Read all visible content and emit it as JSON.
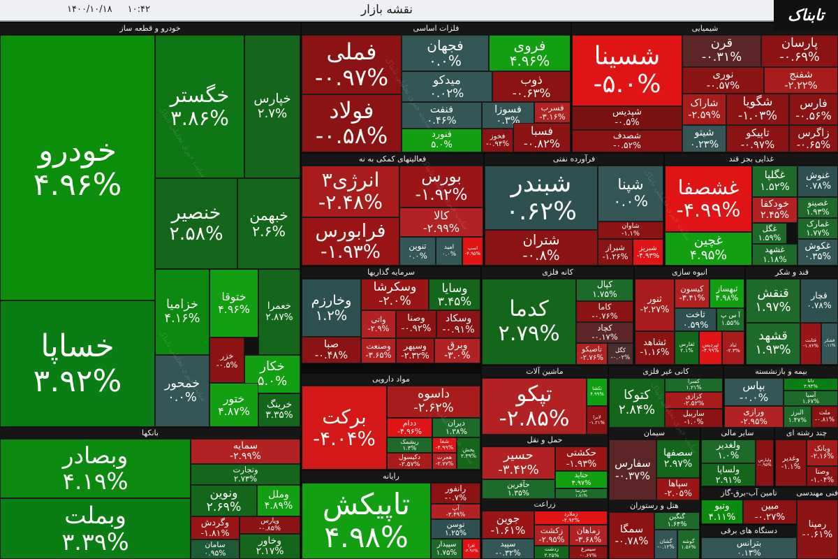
{
  "header": {
    "title": "نقشه بازار",
    "date": "۱۴۰۰/۱۰/۱۸",
    "time": "۱۰:۴۲",
    "logo": "تابناک"
  },
  "watermark": "سایت خبری تحلیلی تابناک",
  "sectors": [
    {
      "name": "خودرو و قطعه ساز",
      "tiles": [
        {
          "name": "خودرو",
          "change": "۴.۹۶%",
          "color": "#0b8f0b"
        },
        {
          "name": "خساپا",
          "change": "۳.۹۲%",
          "color": "#0a7d14"
        },
        {
          "name": "خگستر",
          "change": "۳.۸۶%",
          "color": "#0e7614"
        },
        {
          "name": "خپارس",
          "change": "۲.۷%",
          "color": "#14661b"
        },
        {
          "name": "خنصیر",
          "change": "۲.۵۸%",
          "color": "#14661b"
        },
        {
          "name": "خبهمن",
          "change": "۲.۶%",
          "color": "#14661b"
        },
        {
          "name": "خزامیا",
          "change": "۴.۱۶%",
          "color": "#0c8a10"
        },
        {
          "name": "ختوقا",
          "change": "۴.۹۶%",
          "color": "#12a012"
        },
        {
          "name": "خعمرا",
          "change": "۲.۸۷%",
          "color": "#14661b"
        },
        {
          "name": "خمحور",
          "change": "۰.۰%",
          "color": "#345656"
        },
        {
          "name": "خزر",
          "change": "-۰.۵%",
          "color": "#8b1313"
        },
        {
          "name": "خکار",
          "change": "۵.۰%",
          "color": "#12a012"
        },
        {
          "name": "ختور",
          "change": "۴.۸۷%",
          "color": "#12a012"
        },
        {
          "name": "خرینگ",
          "change": "۳.۳۵%",
          "color": "#14661b"
        }
      ]
    },
    {
      "name": "بانکها",
      "tiles": [
        {
          "name": "وبصادر",
          "change": "۴.۱۹%",
          "color": "#0c8a10"
        },
        {
          "name": "وبملت",
          "change": "۳.۳۹%",
          "color": "#0a7d14"
        },
        {
          "name": "سمایه",
          "change": "-۲.۹۹%",
          "color": "#b22222"
        },
        {
          "name": "وتجارت",
          "change": "۲.۷۳%",
          "color": "#14661b"
        },
        {
          "name": "ونوین",
          "change": "۲.۶۹%",
          "color": "#14661b"
        },
        {
          "name": "وملل",
          "change": "۴.۸۹%",
          "color": "#12a012"
        },
        {
          "name": "وگردش",
          "change": "-۱.۸۱%",
          "color": "#9a1515"
        },
        {
          "name": "وپارس",
          "change": "-۰.۸۵%",
          "color": "#8b1313"
        },
        {
          "name": "وخاور",
          "change": "۲.۱۷%",
          "color": "#14661b"
        },
        {
          "name": "سامان",
          "change": "۰.۹۵%",
          "color": "#1d5a36"
        }
      ]
    },
    {
      "name": "فلزات اساسی",
      "tiles": [
        {
          "name": "فملی",
          "change": "-۰.۹۷%",
          "color": "#8b1313"
        },
        {
          "name": "فولاد",
          "change": "-۰.۵۸%",
          "color": "#8b1313"
        },
        {
          "name": "فجهان",
          "change": "۰.۰%",
          "color": "#345656"
        },
        {
          "name": "فروی",
          "change": "۴.۹۶%",
          "color": "#12a012"
        },
        {
          "name": "میدکو",
          "change": "۰.۰۲%",
          "color": "#345656"
        },
        {
          "name": "ذوب",
          "change": "-۰.۶۳%",
          "color": "#8b1313"
        },
        {
          "name": "فنفت",
          "change": "۰.۴۶%",
          "color": "#345656"
        },
        {
          "name": "فسوزا",
          "change": "۰.۳%",
          "color": "#345656"
        },
        {
          "name": "فسرب",
          "change": "-۳.۱۶%",
          "color": "#b22222"
        },
        {
          "name": "فنورد",
          "change": "۵.۰%",
          "color": "#12a012"
        },
        {
          "name": "فخوز",
          "change": "-۰.۹۴%",
          "color": "#8b1313"
        },
        {
          "name": "فسبا",
          "change": "-۰.۸۲%",
          "color": "#8b1313"
        }
      ]
    },
    {
      "name": "شیمیایی",
      "tiles": [
        {
          "name": "شسینا",
          "change": "-۵.۰%",
          "color": "#e01414"
        },
        {
          "name": "شپدیس",
          "change": "-۰.۵%",
          "color": "#7a1111"
        },
        {
          "name": "شصدف",
          "change": "-۰.۵۲%",
          "color": "#8b1313"
        },
        {
          "name": "قرن",
          "change": "-۰.۳۱%",
          "color": "#5c2626"
        },
        {
          "name": "پارسان",
          "change": "-۰.۶۹%",
          "color": "#8b1313"
        },
        {
          "name": "نوری",
          "change": "-۰.۵۷%",
          "color": "#8b1313"
        },
        {
          "name": "شفنج",
          "change": "-۲.۲۲%",
          "color": "#a81c1c"
        },
        {
          "name": "شاراک",
          "change": "-۲.۵۹%",
          "color": "#a81c1c"
        },
        {
          "name": "شگویا",
          "change": "-۱.۰۳%",
          "color": "#8b1313"
        },
        {
          "name": "فارس",
          "change": "-۰.۵۶%",
          "color": "#8b1313"
        },
        {
          "name": "شیتو",
          "change": "۰.۲۳%",
          "color": "#345656"
        },
        {
          "name": "تاپیکو",
          "change": "-۰.۹۷%",
          "color": "#8b1313"
        },
        {
          "name": "زاگرس",
          "change": "-۰.۶۵%",
          "color": "#8b1313"
        }
      ]
    },
    {
      "name": "فعالیتهای کمکی به نه",
      "tiles": [
        {
          "name": "انرژی۳",
          "change": "-۲.۴۸%",
          "color": "#a81c1c"
        },
        {
          "name": "فرابورس",
          "change": "-۱.۹۳%",
          "color": "#9a1515"
        },
        {
          "name": "بورس",
          "change": "-۱.۹۲%",
          "color": "#9a1515"
        },
        {
          "name": "کالا",
          "change": "-۲.۹۹%",
          "color": "#b22222"
        },
        {
          "name": "تنوین",
          "change": "۰.۰%",
          "color": "#345656"
        },
        {
          "name": "امید",
          "change": "۰.۰%",
          "color": "#345656"
        },
        {
          "name": "اسپ",
          "change": "-۴.۹۵%",
          "color": "#e01414"
        }
      ]
    },
    {
      "name": "فرآورده نفتی",
      "tiles": [
        {
          "name": "شبندر",
          "change": "۰.۶۲%",
          "color": "#2f5050"
        },
        {
          "name": "شپنا",
          "change": "۰.۰%",
          "color": "#345656"
        },
        {
          "name": "شتران",
          "change": "-۰.۸%",
          "color": "#8b1313"
        },
        {
          "name": "شاوان",
          "change": "-۱.۱%",
          "color": "#8b1313"
        },
        {
          "name": "شیراز",
          "change": "-۱.۲۶%",
          "color": "#8b1313"
        },
        {
          "name": "شبریز",
          "change": "-۴.۹۳%",
          "color": "#e01414"
        }
      ]
    },
    {
      "name": "غذایی بجز قند",
      "tiles": [
        {
          "name": "غشصفا",
          "change": "-۴.۹۹%",
          "color": "#e01414"
        },
        {
          "name": "غچین",
          "change": "۴.۹۵%",
          "color": "#12a012"
        },
        {
          "name": "غگلپا",
          "change": "۱.۵۲%",
          "color": "#1d6a2a"
        },
        {
          "name": "غنوش",
          "change": "۰.۷۸%",
          "color": "#2f5050"
        },
        {
          "name": "خودکفا",
          "change": "۲.۴۵%",
          "color": "#b22222"
        },
        {
          "name": "غصینو",
          "change": "۱.۹۳%",
          "color": "#1d6a2a"
        },
        {
          "name": "غگل",
          "change": "۱.۵۹%",
          "color": "#1d6a2a"
        },
        {
          "name": "غمارک",
          "change": "۱.۷۷%",
          "color": "#1d6a2a"
        },
        {
          "name": "غشهد",
          "change": "۱.۱۸%",
          "color": "#1d6a2a"
        },
        {
          "name": "غکوش",
          "change": "۰.۳۵%",
          "color": "#345656"
        }
      ]
    },
    {
      "name": "سرمایه گذاریها",
      "tiles": [
        {
          "name": "وخارزم",
          "change": "۱.۲%",
          "color": "#2f5050"
        },
        {
          "name": "صبا",
          "change": "-۰.۴۸%",
          "color": "#8b1313"
        },
        {
          "name": "وسکرشا",
          "change": "-۲.۰%",
          "color": "#9a1515"
        },
        {
          "name": "وسایا",
          "change": "۳.۴۵%",
          "color": "#14661b"
        },
        {
          "name": "واتی",
          "change": "-۲.۹%",
          "color": "#b22222"
        },
        {
          "name": "وصنا",
          "change": "-۰.۹۲%",
          "color": "#8b1313"
        },
        {
          "name": "وسکاد",
          "change": "-۰.۹۱%",
          "color": "#8b1313"
        },
        {
          "name": "وصنعت",
          "change": "-۳.۶۵%",
          "color": "#b22222"
        },
        {
          "name": "وسپهر",
          "change": "-۲.۳۲%",
          "color": "#9a1515"
        },
        {
          "name": "وبرق",
          "change": "-۳.۰%",
          "color": "#b22222"
        }
      ]
    },
    {
      "name": "کانه فلزی",
      "tiles": [
        {
          "name": "کدما",
          "change": "۲.۷۹%",
          "color": "#14661b"
        },
        {
          "name": "کپال",
          "change": "۱.۷۵%",
          "color": "#1d6a2a"
        },
        {
          "name": "کاما",
          "change": "-۰.۷۶%",
          "color": "#8b1313"
        },
        {
          "name": "کچاد",
          "change": "-۰.۱۷%",
          "color": "#5c2626"
        },
        {
          "name": "تاصیکو",
          "change": "-۲.۷۶%",
          "color": "#b22222"
        },
        {
          "name": "کگل",
          "change": "-۰.۰۲%",
          "color": "#4a2e2e"
        }
      ]
    },
    {
      "name": "انبوه سازی",
      "tiles": [
        {
          "name": "ثنور",
          "change": "-۲.۲۷%",
          "color": "#a81c1c"
        },
        {
          "name": "کیسون",
          "change": "-۳.۴۱%",
          "color": "#b22222"
        },
        {
          "name": "ثبهساز",
          "change": "۴.۹۸%",
          "color": "#12a012"
        },
        {
          "name": "ثاخت",
          "change": "۰.۵۹%",
          "color": "#2f5050"
        },
        {
          "name": "آ س پ",
          "change": "۱.۵۵%",
          "color": "#1d6a2a"
        },
        {
          "name": "ثشاهد",
          "change": "-۱.۱۶%",
          "color": "#8b1313"
        },
        {
          "name": "ثفارس",
          "change": "۲.۱%",
          "color": "#14661b"
        },
        {
          "name": "ثپردیس",
          "change": "-۴.۹۹%",
          "color": "#e01414"
        },
        {
          "name": "ثباد",
          "change": "-۲.۳%",
          "color": "#a81c1c"
        }
      ]
    },
    {
      "name": "قند و شکر",
      "tiles": [
        {
          "name": "قنقش",
          "change": "۱.۹۷%",
          "color": "#1d6a2a"
        },
        {
          "name": "قچار",
          "change": "۰.۷۸%",
          "color": "#2f5050"
        },
        {
          "name": "قشهد",
          "change": "۱.۹۳%",
          "color": "#1d6a2a"
        },
        {
          "name": "قثابت",
          "change": "-۱.۷۶%",
          "color": "#9a1515"
        },
        {
          "name": "قشکر",
          "change": "۰.۱۱%",
          "color": "#345656"
        }
      ]
    },
    {
      "name": "مواد دارویی",
      "tiles": [
        {
          "name": "برکت",
          "change": "-۴.۰۴%",
          "color": "#d41818"
        },
        {
          "name": "داسوه",
          "change": "-۲.۶۲%",
          "color": "#a81c1c"
        },
        {
          "name": "ددام",
          "change": "-۴.۹۶%",
          "color": "#e01414"
        },
        {
          "name": "دیران",
          "change": "۱.۳۸%",
          "color": "#1d6a2a"
        },
        {
          "name": "ریشمک",
          "change": "۱.۳%",
          "color": "#1d6a2a"
        },
        {
          "name": "شفا",
          "change": "-۴.۹۹%",
          "color": "#e01414"
        },
        {
          "name": "دکیسول",
          "change": "-۲.۵۷%",
          "color": "#a81c1c"
        },
        {
          "name": "هجرت",
          "change": "-۲.۷۷%",
          "color": "#b22222"
        },
        {
          "name": "پخش",
          "change": "۲.۳۹%",
          "color": "#14661b"
        }
      ]
    },
    {
      "name": "رایانه",
      "tiles": [
        {
          "name": "تاپیکش",
          "change": "۴.۹۸%",
          "color": "#12a012"
        },
        {
          "name": "رانفور",
          "change": "-۰.۷%",
          "color": "#8b1313"
        },
        {
          "name": "آپ",
          "change": "-۳.۴۹%",
          "color": "#b22222"
        },
        {
          "name": "توسن",
          "change": "۱.۲۵%",
          "color": "#2f5050"
        },
        {
          "name": "سپیدار",
          "change": "۱.۷۵%",
          "color": "#1d6a2a"
        },
        {
          "name": "افرا",
          "change": "-۴.۹۶%",
          "color": "#e01414"
        }
      ]
    },
    {
      "name": "ماشین آلات",
      "tiles": [
        {
          "name": "تپکو",
          "change": "-۲.۸۵%",
          "color": "#b22222"
        },
        {
          "name": "تکشا",
          "change": "۴.۹۹%",
          "color": "#12a012"
        },
        {
          "name": "لابرا",
          "change": "-۱.۲۱%",
          "color": "#8b1313"
        }
      ]
    },
    {
      "name": "کانی غیر فلزی",
      "tiles": [
        {
          "name": "کتوکا",
          "change": "۲.۸۴%",
          "color": "#14661b"
        },
        {
          "name": "کسرا",
          "change": "۱.۲۱%",
          "color": "#1d6a2a"
        },
        {
          "name": "کرازی",
          "change": "-۲.۵۲%",
          "color": "#a81c1c"
        },
        {
          "name": "ساربیل",
          "change": "-۱.۰%",
          "color": "#8b1313"
        }
      ]
    },
    {
      "name": "بیمه و بازنشسته",
      "tiles": [
        {
          "name": "بپاس",
          "change": "-۰.۰%",
          "color": "#345656"
        },
        {
          "name": "دانا",
          "change": "۳.۹۳%",
          "color": "#0a7d14"
        },
        {
          "name": "آسیا",
          "change": "۱.۶۷%",
          "color": "#1d6a2a"
        },
        {
          "name": "ورازی",
          "change": "-۲.۹۵%",
          "color": "#b22222"
        },
        {
          "name": "البرز",
          "change": "۱.۴۷%",
          "color": "#1d6a2a"
        },
        {
          "name": "ملت",
          "change": "-۰.۸۱%",
          "color": "#8b1313"
        }
      ]
    },
    {
      "name": "حمل و نقل",
      "tiles": [
        {
          "name": "حسیر",
          "change": "-۳.۴۲%",
          "color": "#b22222"
        },
        {
          "name": "حکشتی",
          "change": "-۱.۹۳%",
          "color": "#9a1515"
        },
        {
          "name": "حتاید",
          "change": "۴.۹۷%",
          "color": "#12a012"
        },
        {
          "name": "حآفرین",
          "change": "۱.۳۵%",
          "color": "#1d6a2a"
        },
        {
          "name": "حپارسا",
          "change": "۱.۸۱%",
          "color": "#1d6a2a"
        }
      ]
    },
    {
      "name": "زراعت",
      "tiles": [
        {
          "name": "زملارد",
          "change": "-۴.۹۳%",
          "color": "#e01414"
        },
        {
          "name": "جوین",
          "change": "-۱.۶۱%",
          "color": "#9a1515"
        },
        {
          "name": "زکشت",
          "change": "-۲.۹۵%",
          "color": "#b22222"
        },
        {
          "name": "زماهان",
          "change": "-۳.۶۸%",
          "color": "#b22222"
        },
        {
          "name": "سپید",
          "change": "-۰.۳۲%",
          "color": "#345656"
        },
        {
          "name": "زدشت",
          "change": "۲.۲۵%",
          "color": "#14661b"
        },
        {
          "name": "سیمرغ",
          "change": "-۰.۶۷%",
          "color": "#8b1313"
        }
      ]
    },
    {
      "name": "سیمان",
      "tiles": [
        {
          "name": "سفارس",
          "change": "-۰.۳۷%",
          "color": "#5c2626"
        },
        {
          "name": "سصفها",
          "change": "۲.۹۷%",
          "color": "#14661b"
        },
        {
          "name": "سپاها",
          "change": "-۲.۰۵%",
          "color": "#9a1515"
        }
      ]
    },
    {
      "name": "سایر مالی",
      "tiles": [
        {
          "name": "ولغدیر",
          "change": "۱.۰%",
          "color": "#1d6a2a"
        },
        {
          "name": "ولساپا",
          "change": "۲.۹۱%",
          "color": "#14661b"
        },
        {
          "name": "ولپارس",
          "change": "-۰.۹۵%",
          "color": "#8b1313"
        }
      ]
    },
    {
      "name": "چند رشته ای",
      "tiles": [
        {
          "name": "وغدیر",
          "change": "-۱.۱%",
          "color": "#8b1313"
        },
        {
          "name": "وبانک",
          "change": "-۲.۱۶%",
          "color": "#a81c1c"
        },
        {
          "name": "وصنا",
          "change": "-۱.۰۴%",
          "color": "#8b1313"
        }
      ]
    },
    {
      "name": "هتل و رستوران",
      "tiles": [
        {
          "name": "سمگا",
          "change": "-۰.۷۸%",
          "color": "#8b1313"
        },
        {
          "name": "گنگین",
          "change": "۱.۶۴%",
          "color": "#1d6a2a"
        },
        {
          "name": "گشان",
          "change": "-۰.۱۲%",
          "color": "#345656"
        },
        {
          "name": "گوشه",
          "change": "۱.۵۶%",
          "color": "#1d6a2a"
        }
      ]
    },
    {
      "name": "تامین آب-برق-گاز",
      "tiles": [
        {
          "name": "وتبو",
          "change": "۴.۱۱%",
          "color": "#0c8a10"
        },
        {
          "name": "مبین",
          "change": "-۰.۲۷%",
          "color": "#8b1313"
        }
      ]
    },
    {
      "name": "دستگاه های برقی",
      "tiles": [
        {
          "name": "بترانس",
          "change": "۰.۱۳%",
          "color": "#345656"
        }
      ]
    },
    {
      "name": "فنی مهندسی",
      "tiles": [
        {
          "name": "رمپنا",
          "change": "-۰.۶۱%",
          "color": "#8b1313"
        }
      ]
    }
  ]
}
